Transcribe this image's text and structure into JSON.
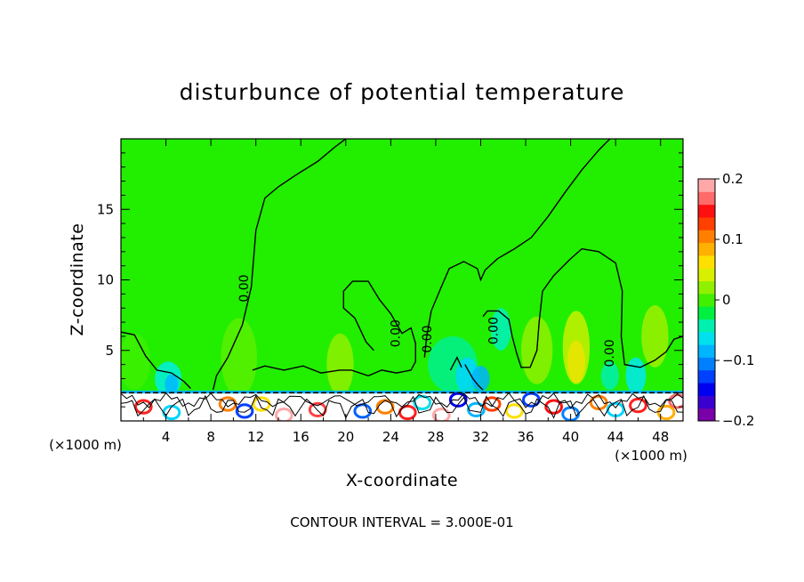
{
  "chart_data": {
    "type": "contour",
    "title": "disturbunce of potential temperature",
    "xlabel": "X-coordinate",
    "ylabel": "Z-coordinate",
    "x_unit": "(×1000 m)",
    "footer": "CONTOUR INTERVAL = 3.000E-01",
    "xlim": [
      0,
      50
    ],
    "ylim": [
      0,
      20
    ],
    "x_ticks": [
      4,
      8,
      12,
      16,
      20,
      24,
      28,
      32,
      36,
      40,
      44,
      48
    ],
    "y_ticks": [
      5,
      10,
      15
    ],
    "contour_label": "0.00",
    "colorbar": {
      "range": [
        -0.2,
        0.2
      ],
      "tick_values": [
        0.2,
        0.1,
        0,
        -0.1,
        -0.2
      ],
      "tick_labels": [
        "0.2",
        "0.1",
        "0",
        "−0.1",
        "−0.2"
      ],
      "colors": [
        "#7a00a8",
        "#3a00d0",
        "#0000f0",
        "#0040ff",
        "#0080ff",
        "#00b4ff",
        "#00e0ee",
        "#00f0b0",
        "#00f040",
        "#40f000",
        "#90f000",
        "#d8f000",
        "#ffe000",
        "#ffb000",
        "#ff8000",
        "#ff4000",
        "#ff1010",
        "#ff6a6a",
        "#ffa8a8"
      ]
    },
    "background_color": "#22ee00",
    "low_layer_color": "#ffffff"
  }
}
